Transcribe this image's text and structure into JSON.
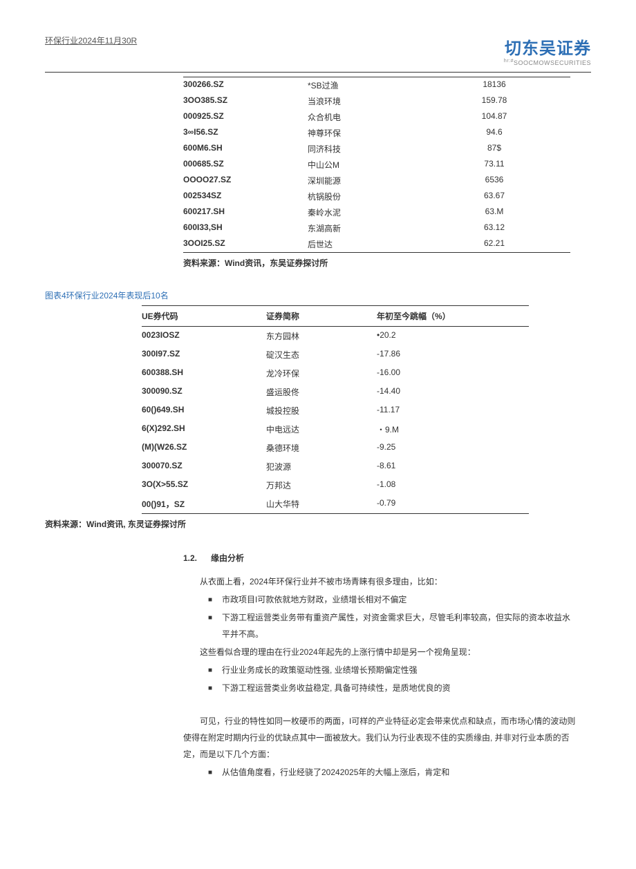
{
  "header": {
    "left": "环保行业2024年11月30R",
    "logo_main": "切东吴证券",
    "logo_sub_pre": "hr:#",
    "logo_sub": "SOOCMOWSECURITIES"
  },
  "table1": {
    "rows": [
      {
        "code": "300266.SZ",
        "name": "*SB过渔",
        "value": "18136"
      },
      {
        "code": "3OO385.SZ",
        "name": "当浪环境",
        "value": "159.78"
      },
      {
        "code": "000925.SZ",
        "name": "众合机电",
        "value": "104.87"
      },
      {
        "code": "3∞I56.SZ",
        "name": "神尊环保",
        "value": "94.6"
      },
      {
        "code": "600M6.SH",
        "name": "同济科技",
        "value": "87$"
      },
      {
        "code": "000685.SZ",
        "name": "中山公M",
        "value": "73.11"
      },
      {
        "code": "OOOO27.SZ",
        "name": "深圳能源",
        "value": "6536"
      },
      {
        "code": "002534SZ",
        "name": "杭锅股份",
        "value": "63.67"
      },
      {
        "code": "600217.SH",
        "name": "秦岭水泥",
        "value": "63.M"
      },
      {
        "code": "600I33,SH",
        "name": "东湖高新",
        "value": "63.12"
      },
      {
        "code": "3OOI25.SZ",
        "name": "后世达",
        "value": "62.21"
      }
    ],
    "source": "资料来源：Wind资讯，东吴证券探讨所"
  },
  "table2": {
    "title": "图表4环保行业2024年表现后10名",
    "headers": {
      "h1": "UE券代码",
      "h2": "证券简称",
      "h3": "年初至今跳幅（%）"
    },
    "rows": [
      {
        "code": "0023IOSZ",
        "name": "东方园林",
        "value": "•20.2"
      },
      {
        "code": "300I97.SZ",
        "name": "碇汉生态",
        "value": "-17.86"
      },
      {
        "code": "600388.SH",
        "name": "龙冷环保",
        "value": "-16.00"
      },
      {
        "code": "300090.SZ",
        "name": "盛运股佟",
        "value": "-14.40"
      },
      {
        "code": "60()649.SH",
        "name": "城投控股",
        "value": "-11.17"
      },
      {
        "code": "6(X)292.SH",
        "name": "中电远达",
        "value": "・9.M"
      },
      {
        "code": "(M)(W26.SZ",
        "name": "桑德环境",
        "value": "-9.25"
      },
      {
        "code": "300070.SZ",
        "name": "犯波源",
        "value": "-8.61"
      },
      {
        "code": "3O(X>55.SZ",
        "name": "万邦达",
        "value": "-1.08"
      },
      {
        "code": "00()91，SZ",
        "name": "山大华特",
        "value": "-0.79"
      }
    ],
    "source": "资料来源：Wind资讯, 东灵证券探讨所"
  },
  "section": {
    "num": "1.2.",
    "title": "缘由分析",
    "p1": "从衣面上看，2024年环保行业并不被市场青睐有很多理由，比如：",
    "bullets1": [
      "市政项目I可款依就地方财政，业绩增长相对不偏定",
      "下游工程运营类业务带有重资产属性，对资金需求巨大，尽管毛利率较高，但实际的资本收益水平并不高。"
    ],
    "p2": "这些看似合理的理由在行业2024年起先的上涨行情中却是另一个视角呈现：",
    "bullets2": [
      "行业业务成长的政策驱动性强, 业绩增长预期偏定性强",
      "下游工程运营类业务收益稳定, 具备可持续性，是质地优良的资"
    ],
    "p3": "可见，行业的特性如同一枚硬币的两面，I可样的产业特征必定会带来优点和缺点，而市场心情的波动则使得在附定时期内行业的优缺点其中一面被放大。我们认为行业表现不佳的实质缘由, 并非对行业本质的否定，而是以下几个方面：",
    "bullets3": [
      "从估值角度看，行业经骁了20242025年的大幅上涨后，肯定和"
    ]
  }
}
